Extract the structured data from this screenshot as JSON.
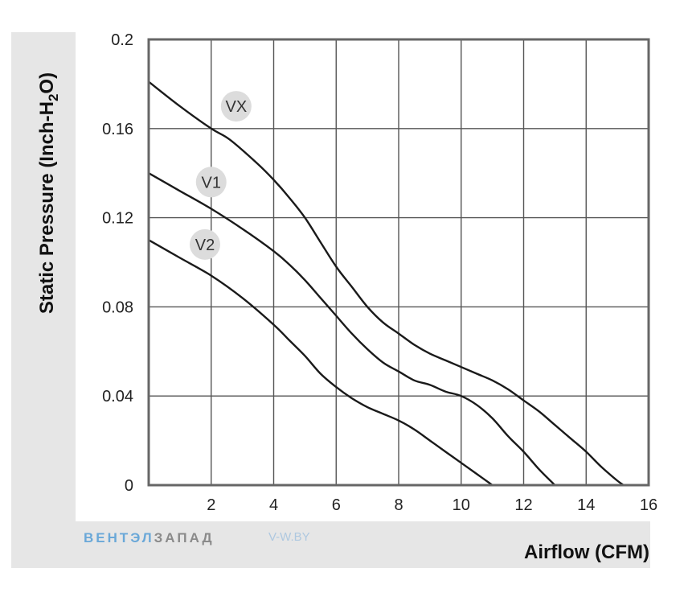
{
  "chart_data": {
    "type": "line",
    "xlabel": "Airflow (CFM)",
    "ylabel": "Static Pressure (Inch-H2O)",
    "ylabel_parts": [
      "Static Pressure (Inch-H",
      "2",
      "O)"
    ],
    "xlim": [
      0,
      16
    ],
    "ylim": [
      0,
      0.2
    ],
    "x_ticks": [
      2,
      4,
      6,
      8,
      10,
      12,
      14,
      16
    ],
    "x_tick_labels": [
      "2",
      "4",
      "6",
      "8",
      "10",
      "12",
      "14",
      "16"
    ],
    "y_ticks": [
      0,
      0.04,
      0.08,
      0.12,
      0.16,
      0.2
    ],
    "y_tick_labels": [
      "0",
      "0.04",
      "0.08",
      "0.12",
      "0.16",
      "0.2"
    ],
    "grid": true,
    "series": [
      {
        "name": "VX",
        "x": [
          0,
          1,
          2,
          2.6,
          3.5,
          4,
          4.5,
          5,
          5.5,
          6,
          6.5,
          7,
          7.5,
          8,
          8.5,
          9,
          9.5,
          10,
          10.5,
          11,
          11.5,
          12,
          12.5,
          13,
          13.5,
          14,
          14.5,
          15,
          15.2
        ],
        "y": [
          0.181,
          0.17,
          0.16,
          0.155,
          0.144,
          0.137,
          0.129,
          0.12,
          0.109,
          0.098,
          0.089,
          0.08,
          0.073,
          0.068,
          0.063,
          0.059,
          0.056,
          0.053,
          0.05,
          0.047,
          0.043,
          0.038,
          0.033,
          0.027,
          0.021,
          0.015,
          0.008,
          0.002,
          0
        ]
      },
      {
        "name": "V1",
        "x": [
          0,
          1,
          2,
          3,
          4,
          4.5,
          5,
          5.5,
          6,
          6.5,
          7,
          7.5,
          8,
          8.5,
          9,
          9.5,
          10,
          10.5,
          11,
          11.5,
          12,
          12.5,
          13
        ],
        "y": [
          0.14,
          0.132,
          0.124,
          0.115,
          0.105,
          0.099,
          0.092,
          0.084,
          0.076,
          0.068,
          0.061,
          0.055,
          0.051,
          0.047,
          0.045,
          0.042,
          0.04,
          0.036,
          0.03,
          0.022,
          0.015,
          0.007,
          0
        ]
      },
      {
        "name": "V2",
        "x": [
          0,
          1,
          2,
          3,
          4,
          4.5,
          5,
          5.5,
          6,
          6.5,
          7,
          7.5,
          8,
          8.5,
          9,
          9.5,
          10,
          10.5,
          11
        ],
        "y": [
          0.11,
          0.102,
          0.094,
          0.084,
          0.072,
          0.065,
          0.058,
          0.05,
          0.044,
          0.039,
          0.035,
          0.032,
          0.029,
          0.025,
          0.02,
          0.015,
          0.01,
          0.005,
          0
        ]
      }
    ],
    "curve_labels": [
      {
        "text": "VX",
        "x": 2.8,
        "y": 0.17
      },
      {
        "text": "V1",
        "x": 2.0,
        "y": 0.136
      },
      {
        "text": "V2",
        "x": 1.8,
        "y": 0.108
      }
    ]
  },
  "watermark": {
    "part1": "ВЕНТЭЛ",
    "part2": "ЗАПАД",
    "site": "V-W.BY"
  },
  "colors": {
    "line": "#1a1a1a",
    "grid": "#555555",
    "frame": "#666666",
    "panel": "#e6e6e6",
    "badge": "#dcdcdc",
    "watermark_blue": "#6aa8d8",
    "watermark_gray": "#8a8a8a",
    "site": "#aec8e0"
  }
}
